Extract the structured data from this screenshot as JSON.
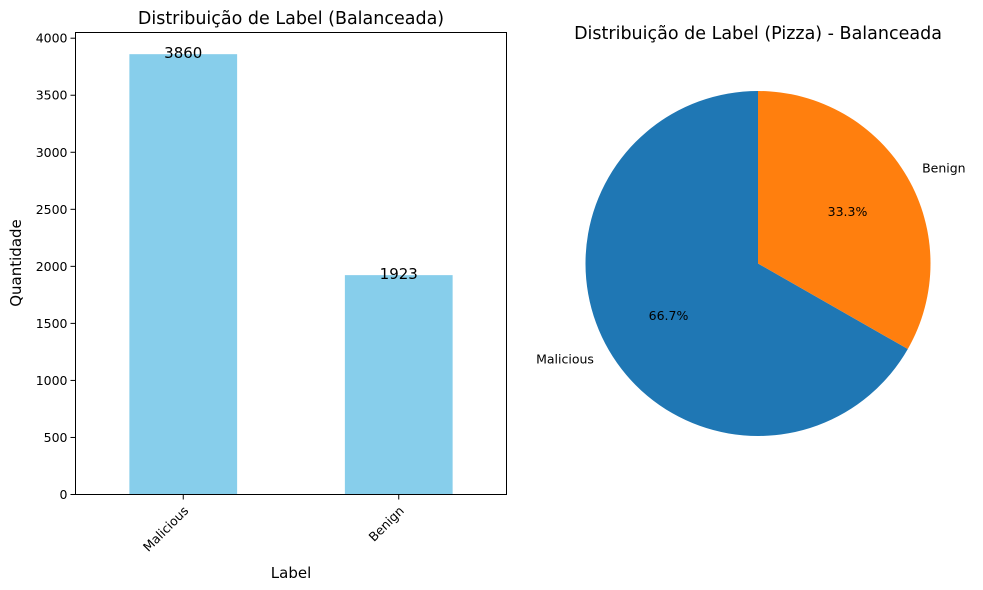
{
  "chart_data": [
    {
      "type": "bar",
      "title": "Distribuição de Label (Balanceada)",
      "xlabel": "Label",
      "ylabel": "Quantidade",
      "categories": [
        "Malicious",
        "Benign"
      ],
      "values": [
        3860,
        1923
      ],
      "data_labels": [
        "3860",
        "1923"
      ],
      "ylim": [
        0,
        4050
      ],
      "yticks": [
        "0",
        "500",
        "1000",
        "1500",
        "2000",
        "2500",
        "3000",
        "3500",
        "4000"
      ],
      "grid": false,
      "bar_color": "#87ceeb"
    },
    {
      "type": "pie",
      "title": "Distribuição de Label (Pizza) - Balanceada",
      "labels": [
        "Malicious",
        "Benign"
      ],
      "values": [
        3860,
        1923
      ],
      "percent_labels": [
        "66.7%",
        "33.3%"
      ],
      "colors": [
        "#1f77b4",
        "#ff7f0e"
      ]
    }
  ]
}
